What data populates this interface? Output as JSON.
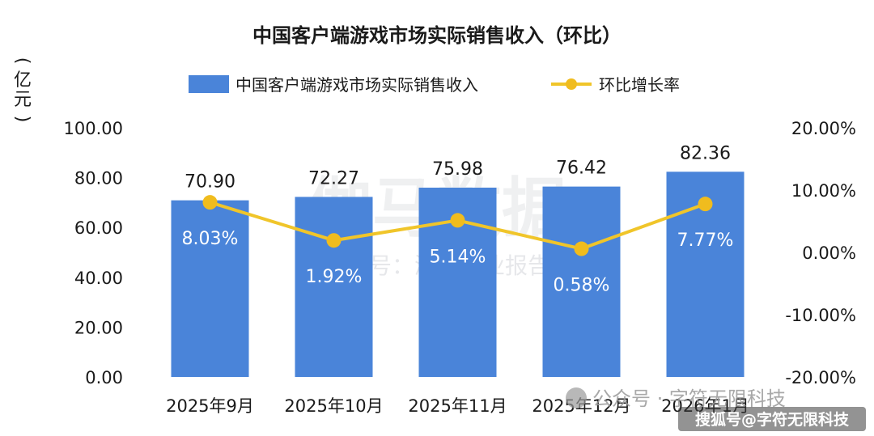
{
  "chart_data": {
    "type": "bar",
    "title": "中国客户端游戏市场实际销售收入（环比）",
    "ylabel": "亿元",
    "categories": [
      "2025年9月",
      "2025年10月",
      "2025年11月",
      "2025年12月",
      "2026年1月"
    ],
    "series": [
      {
        "name": "中国客户端游戏市场实际销售收入",
        "type": "bar",
        "axis": "left",
        "values": [
          70.9,
          72.27,
          75.98,
          76.42,
          82.36
        ],
        "labels": [
          "70.90",
          "72.27",
          "75.98",
          "76.42",
          "82.36"
        ]
      },
      {
        "name": "环比增长率",
        "type": "line",
        "axis": "right",
        "values": [
          8.03,
          1.92,
          5.14,
          0.58,
          7.77
        ],
        "labels": [
          "8.03%",
          "1.92%",
          "5.14%",
          "0.58%",
          "7.77%"
        ]
      }
    ],
    "ylim": [
      0,
      100
    ],
    "y_ticks": [
      "0.00",
      "20.00",
      "40.00",
      "60.00",
      "80.00",
      "100.00"
    ],
    "y2lim": [
      -20,
      20
    ],
    "y2_ticks": [
      "-20.00%",
      "-10.00%",
      "0.00%",
      "10.00%",
      "20.00%"
    ],
    "legend_position": "top",
    "grid": false
  },
  "colors": {
    "bar": "#4a84d9",
    "line": "#f0c52a",
    "marker": "#f0bc1e"
  },
  "watermarks": {
    "large": "伽马数据",
    "small": "微信号：游戏产业报告",
    "corner_source": "公众号 · 字符无限科技",
    "corner_badge": "搜狐号@字符无限科技"
  }
}
